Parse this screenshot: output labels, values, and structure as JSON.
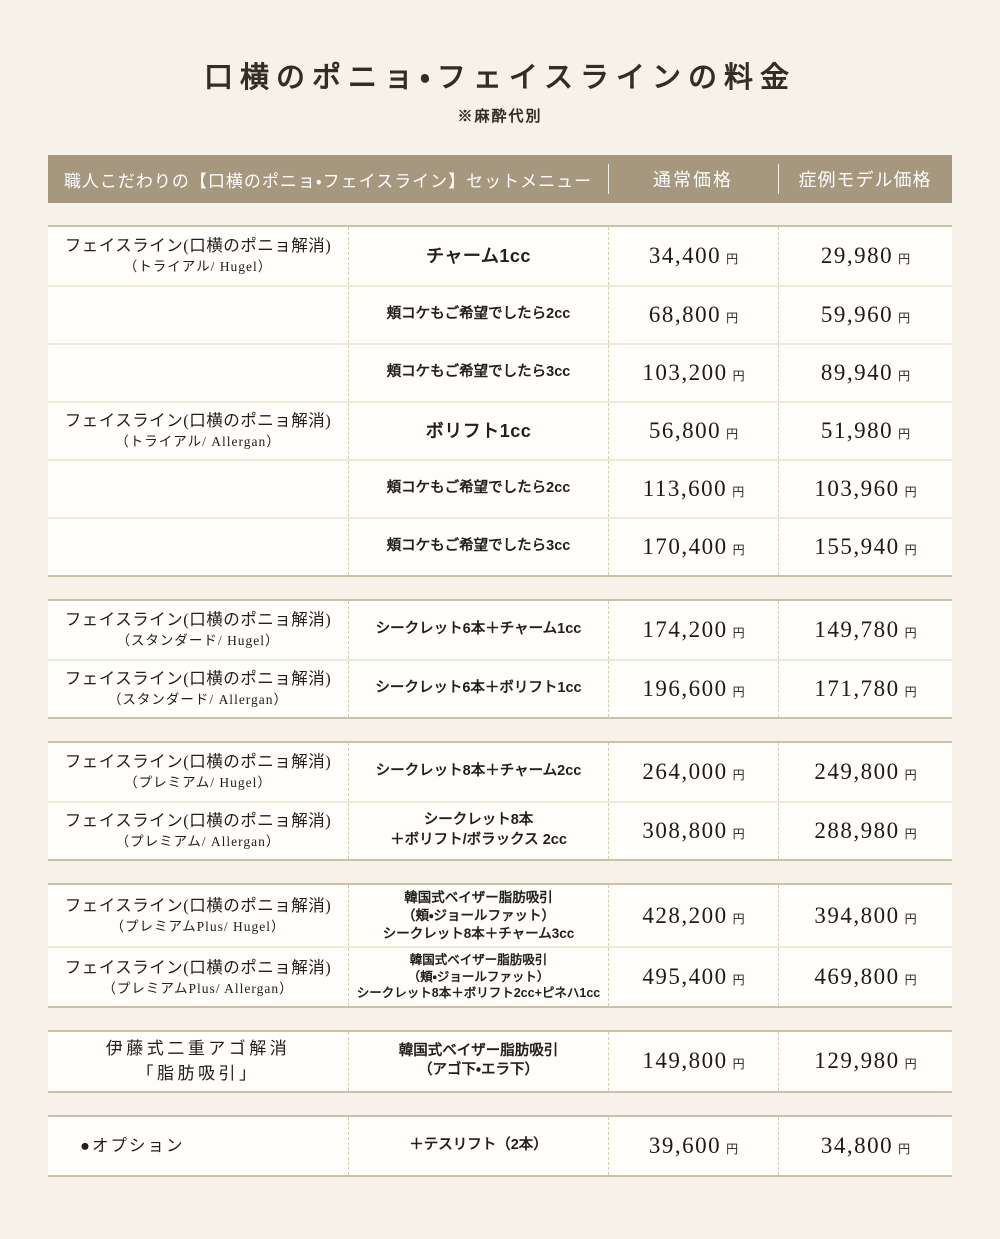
{
  "title": "口横のポニョ・フェイスラインの料金",
  "note": "※麻酔代別",
  "unit": "円",
  "header": {
    "menu_label": "職人こだわりの【口横のポニョ・フェイスライン】セットメニュー",
    "regular_label": "通常価格",
    "model_label": "症例モデル価格"
  },
  "colors": {
    "page_bg": "#f6f2e9",
    "header_bg": "#a6977f",
    "header_text": "#ffffff",
    "row_bg": "#fffefb",
    "group_border": "#ccc0a9",
    "dashed_divider": "#d8cbb5",
    "text": "#211e19"
  },
  "groups": [
    {
      "rows": [
        {
          "name": [
            "フェイスライン(口横のポニョ解消)",
            "（トライアル/ Hugel）"
          ],
          "name_variant": "with-sub",
          "menu": [
            "チャーム1cc"
          ],
          "menu_size": "lg",
          "regular": "34,400",
          "model": "29,980"
        },
        {
          "name": [],
          "name_variant": "empty",
          "menu": [
            "頬コケもご希望でしたら2cc"
          ],
          "menu_size": "md",
          "regular": "68,800",
          "model": "59,960"
        },
        {
          "name": [],
          "name_variant": "empty",
          "menu": [
            "頬コケもご希望でしたら3cc"
          ],
          "menu_size": "md",
          "regular": "103,200",
          "model": "89,940"
        },
        {
          "name": [
            "フェイスライン(口横のポニョ解消)",
            "（トライアル/ Allergan）"
          ],
          "name_variant": "with-sub",
          "menu": [
            "ボリフト1cc"
          ],
          "menu_size": "lg",
          "regular": "56,800",
          "model": "51,980"
        },
        {
          "name": [],
          "name_variant": "empty",
          "menu": [
            "頬コケもご希望でしたら2cc"
          ],
          "menu_size": "md",
          "regular": "113,600",
          "model": "103,960"
        },
        {
          "name": [],
          "name_variant": "empty",
          "menu": [
            "頬コケもご希望でしたら3cc"
          ],
          "menu_size": "md",
          "regular": "170,400",
          "model": "155,940"
        }
      ]
    },
    {
      "rows": [
        {
          "name": [
            "フェイスライン(口横のポニョ解消)",
            "（スタンダード/ Hugel）"
          ],
          "name_variant": "with-sub",
          "menu": [
            "シークレット6本＋チャーム1cc"
          ],
          "menu_size": "md",
          "regular": "174,200",
          "model": "149,780"
        },
        {
          "name": [
            "フェイスライン(口横のポニョ解消)",
            "（スタンダード/ Allergan）"
          ],
          "name_variant": "with-sub",
          "menu": [
            "シークレット6本＋ボリフト1cc"
          ],
          "menu_size": "md",
          "regular": "196,600",
          "model": "171,780"
        }
      ]
    },
    {
      "rows": [
        {
          "name": [
            "フェイスライン(口横のポニョ解消)",
            "（プレミアム/ Hugel）"
          ],
          "name_variant": "with-sub",
          "menu": [
            "シークレット8本＋チャーム2cc"
          ],
          "menu_size": "md",
          "regular": "264,000",
          "model": "249,800"
        },
        {
          "name": [
            "フェイスライン(口横のポニョ解消)",
            "（プレミアム/ Allergan）"
          ],
          "name_variant": "with-sub",
          "menu": [
            "シークレット8本",
            "＋ボリフト/ボラックス 2cc"
          ],
          "menu_size": "md",
          "regular": "308,800",
          "model": "288,980"
        }
      ]
    },
    {
      "rows": [
        {
          "name": [
            "フェイスライン(口横のポニョ解消)",
            "（プレミアムPlus/ Hugel）"
          ],
          "name_variant": "with-sub",
          "menu": [
            "韓国式ベイザー脂肪吸引",
            "（頬・ジョールファット）",
            "シークレット8本＋チャーム3cc"
          ],
          "menu_size": "sm",
          "regular": "428,200",
          "model": "394,800"
        },
        {
          "name": [
            "フェイスライン(口横のポニョ解消)",
            "（プレミアムPlus/ Allergan）"
          ],
          "name_variant": "with-sub",
          "menu": [
            "韓国式ベイザー脂肪吸引",
            "（頬・ジョールファット）",
            "シークレット8本＋ボリフト2cc+ピネハ1cc"
          ],
          "menu_size": "xs",
          "regular": "495,400",
          "model": "469,800"
        }
      ]
    },
    {
      "rows": [
        {
          "name": [
            "伊藤式二重アゴ解消",
            "「脂肪吸引」"
          ],
          "name_variant": "two-line",
          "menu": [
            "韓国式ベイザー脂肪吸引",
            "（アゴ下・エラ下）"
          ],
          "menu_size": "md",
          "regular": "149,800",
          "model": "129,980"
        }
      ]
    },
    {
      "rows": [
        {
          "name": [
            "●オプション"
          ],
          "name_variant": "bullet",
          "menu": [
            "＋テスリフト（2本）"
          ],
          "menu_size": "md",
          "regular": "39,600",
          "model": "34,800"
        }
      ]
    }
  ]
}
